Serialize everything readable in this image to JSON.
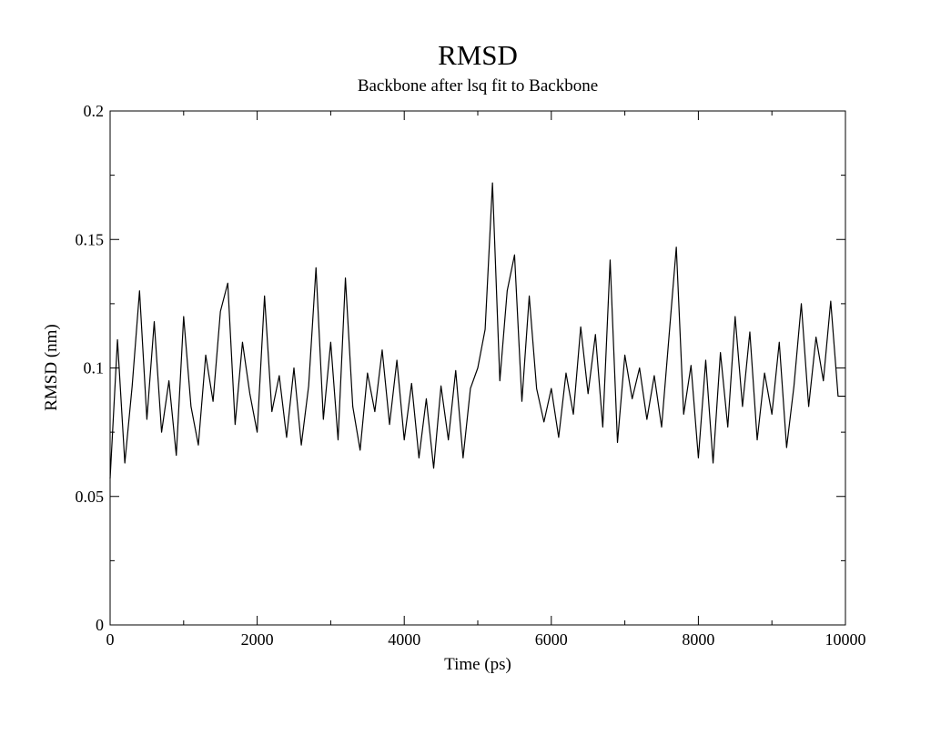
{
  "chart_data": {
    "type": "line",
    "title": "RMSD",
    "subtitle": "Backbone after lsq fit to Backbone",
    "xlabel": "Time (ps)",
    "ylabel": "RMSD (nm)",
    "xlim": [
      0,
      10000
    ],
    "ylim": [
      0,
      0.2
    ],
    "x_ticks": [
      0,
      2000,
      4000,
      6000,
      8000,
      10000
    ],
    "x_tick_labels": [
      "0",
      "2000",
      "4000",
      "6000",
      "8000",
      "10000"
    ],
    "y_ticks": [
      0,
      0.05,
      0.1,
      0.15,
      0.2
    ],
    "y_tick_labels": [
      "0",
      "0.05",
      "0.1",
      "0.15",
      "0.2"
    ],
    "x_minor_ticks": [
      1000,
      3000,
      5000,
      7000,
      9000
    ],
    "y_minor_ticks": [
      0.025,
      0.075,
      0.125,
      0.175
    ],
    "grid": false,
    "line_color": "#000000",
    "series": [
      {
        "x": [
          0,
          100,
          200,
          300,
          400,
          500,
          600,
          700,
          800,
          900,
          1000,
          1100,
          1200,
          1300,
          1400,
          1500,
          1600,
          1700,
          1800,
          1900,
          2000,
          2100,
          2200,
          2300,
          2400,
          2500,
          2600,
          2700,
          2800,
          2900,
          3000,
          3100,
          3200,
          3300,
          3400,
          3500,
          3600,
          3700,
          3800,
          3900,
          4000,
          4100,
          4200,
          4300,
          4400,
          4500,
          4600,
          4700,
          4800,
          4900,
          5000,
          5100,
          5200,
          5300,
          5400,
          5500,
          5600,
          5700,
          5800,
          5900,
          6000,
          6100,
          6200,
          6300,
          6400,
          6500,
          6600,
          6700,
          6800,
          6900,
          7000,
          7100,
          7200,
          7300,
          7400,
          7500,
          7600,
          7700,
          7800,
          7900,
          8000,
          8100,
          8200,
          8300,
          8400,
          8500,
          8600,
          8700,
          8800,
          8900,
          9000,
          9100,
          9200,
          9300,
          9400,
          9500,
          9600,
          9700,
          9800,
          9900,
          10000
        ],
        "values": [
          0.057,
          0.111,
          0.063,
          0.093,
          0.13,
          0.08,
          0.118,
          0.075,
          0.095,
          0.066,
          0.12,
          0.085,
          0.07,
          0.105,
          0.087,
          0.122,
          0.133,
          0.078,
          0.11,
          0.09,
          0.075,
          0.128,
          0.083,
          0.097,
          0.073,
          0.1,
          0.07,
          0.093,
          0.139,
          0.08,
          0.11,
          0.072,
          0.135,
          0.085,
          0.068,
          0.098,
          0.083,
          0.107,
          0.078,
          0.103,
          0.072,
          0.094,
          0.065,
          0.088,
          0.061,
          0.093,
          0.072,
          0.099,
          0.065,
          0.092,
          0.1,
          0.115,
          0.172,
          0.095,
          0.13,
          0.144,
          0.087,
          0.128,
          0.092,
          0.079,
          0.092,
          0.073,
          0.098,
          0.082,
          0.116,
          0.09,
          0.113,
          0.077,
          0.142,
          0.071,
          0.105,
          0.088,
          0.1,
          0.08,
          0.097,
          0.077,
          0.112,
          0.147,
          0.082,
          0.101,
          0.065,
          0.103,
          0.063,
          0.106,
          0.077,
          0.12,
          0.085,
          0.114,
          0.072,
          0.098,
          0.082,
          0.11,
          0.069,
          0.093,
          0.125,
          0.085,
          0.112,
          0.095,
          0.126,
          0.089,
          0.089
        ]
      }
    ]
  }
}
